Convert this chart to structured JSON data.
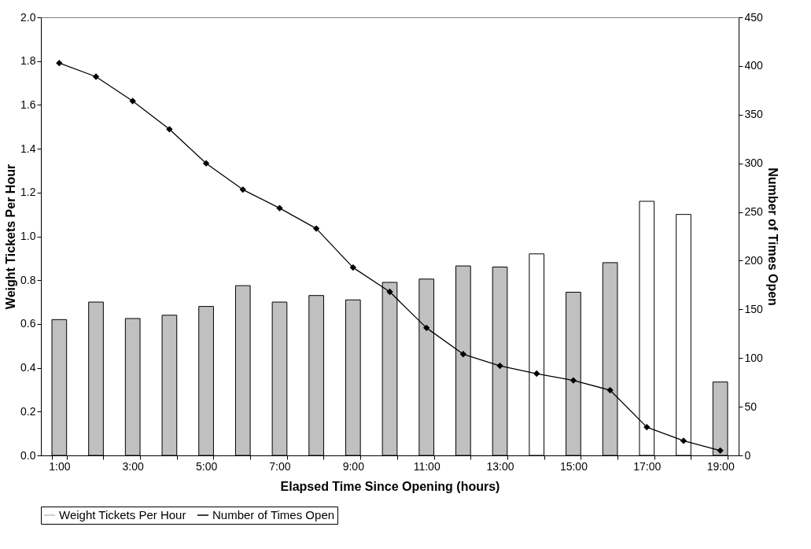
{
  "chart_data": {
    "type": "bar",
    "xlabel": "Elapsed Time Since Opening (hours)",
    "ylabel": "Weight Tickets Per Hour",
    "y2label": "Number of Times Open",
    "categories": [
      "1:00",
      null,
      "3:00",
      null,
      "5:00",
      null,
      "7:00",
      null,
      "9:00",
      null,
      "11:00",
      null,
      "13:00",
      null,
      "15:00",
      null,
      "17:00",
      null,
      "19:00"
    ],
    "series": [
      {
        "name": "Weight Tickets Per Hour",
        "color": "#c0c0c0",
        "colors": [
          "#c0c0c0",
          "#c0c0c0",
          "#c0c0c0",
          "#c0c0c0",
          "#c0c0c0",
          "#c0c0c0",
          "#c0c0c0",
          "#c0c0c0",
          "#c0c0c0",
          "#c0c0c0",
          "#c0c0c0",
          "#c0c0c0",
          "#c0c0c0",
          "#ffffff",
          "#c0c0c0",
          "#c0c0c0",
          "#ffffff",
          "#ffffff",
          "#c0c0c0"
        ],
        "values": [
          0.62,
          0.7,
          0.625,
          0.64,
          0.68,
          0.775,
          0.7,
          0.73,
          0.71,
          0.79,
          0.805,
          0.865,
          0.86,
          0.92,
          0.745,
          0.88,
          1.16,
          1.1,
          0.335
        ]
      },
      {
        "name": "Number of Times Open",
        "type": "line",
        "axis": "y2",
        "color": "#000000",
        "marker": "diamond",
        "values": [
          403,
          389,
          364,
          335,
          300,
          273,
          254,
          233,
          193,
          168,
          131,
          104,
          92,
          84,
          77,
          67,
          29,
          15,
          5
        ]
      }
    ],
    "ylim": [
      0,
      2
    ],
    "yticks": [
      {
        "value": 0,
        "label": "0.0"
      },
      {
        "value": 0.2,
        "label": "0.2"
      },
      {
        "value": 0.4,
        "label": "0.4"
      },
      {
        "value": 0.6,
        "label": "0.6"
      },
      {
        "value": 0.8,
        "label": "0.8"
      },
      {
        "value": 1,
        "label": "1.0"
      },
      {
        "value": 1.2,
        "label": "1.2"
      },
      {
        "value": 1.4,
        "label": "1.4"
      },
      {
        "value": 1.6,
        "label": "1.6"
      },
      {
        "value": 1.8,
        "label": "1.8"
      },
      {
        "value": 2,
        "label": "2.0"
      }
    ],
    "y2lim": [
      0,
      450
    ],
    "y2ticks": [
      0,
      50,
      100,
      150,
      200,
      250,
      300,
      350,
      400,
      450
    ],
    "grid": false,
    "legend": "bottom"
  }
}
